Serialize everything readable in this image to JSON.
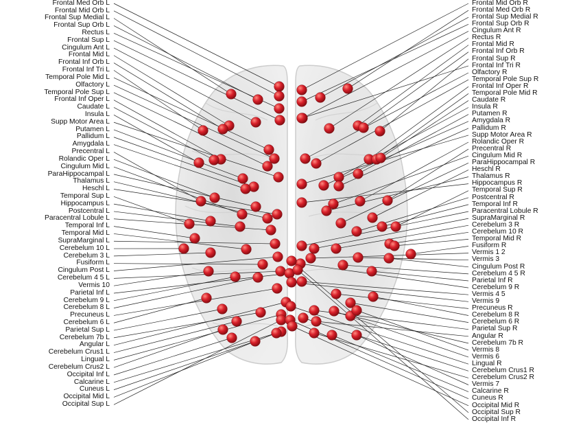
{
  "left_labels": [
    "Frontal Med Orb L",
    "Frontal Mid Orb L",
    "Frontal Sup Medial L",
    "Frontal Sup Orb L",
    "Rectus L",
    "Frontal Sup L",
    "Cingulum Ant L",
    "Frontal Mid L",
    "Frontal Inf Orb L",
    "Frontal Inf Tri L",
    "Temporal Pole Mid L",
    "Olfactory L",
    "Temporal Pole Sup L",
    "Frontal Inf Oper L",
    "Caudate L",
    "Insula L",
    "Supp Motor Area L",
    "Putamen L",
    "Pallidum L",
    "Amygdala L",
    "Precentral L",
    "Rolandic Oper L",
    "Cingulum Mid L",
    "ParaHippocampal L",
    "Thalamus L",
    "Heschl L",
    "Temporal Sup L",
    "Hippocampus L",
    "Postcentral L",
    "Paracentral Lobule L",
    "Temporal Inf L",
    "Temporal Mid L",
    "SupraMarginal L",
    "Cerebelum 10 L",
    "Cerebelum 3 L",
    "Fusiform L",
    "Cingulum Post L",
    "Cerebelum 4 5 L",
    "Vermis 10",
    "Parietal Inf L",
    "Cerebelum 9 L",
    "Cerebelum 8 L",
    "Precuneus L",
    "Cerebelum 6 L",
    "Parietal Sup L",
    "Cerebelum 7b L",
    "Angular L",
    "Cerebelum Crus1 L",
    "Lingual L",
    "Cerebelum Crus2 L",
    "Occipital Inf L",
    "Calcarine L",
    "Cuneus L",
    "Occipital Mid L",
    "Occipital Sup L"
  ],
  "right_labels": [
    "Frontal Mid Orb R",
    "Frontal Med Orb R",
    "Frontal Sup Medial R",
    "Frontal Sup Orb R",
    "Cingulum Ant R",
    "Rectus R",
    "Frontal Mid R",
    "Frontal Inf Orb R",
    "Frontal Sup R",
    "Frontal Inf Tri R",
    "Olfactory R",
    "Temporal Pole Sup R",
    "Frontal Inf Oper R",
    "Temporal Pole Mid R",
    "Caudate R",
    "Insula R",
    "Putamen R",
    "Amygdala R",
    "Pallidum R",
    "Supp Motor Area R",
    "Rolandic Oper R",
    "Precentral R",
    "Cingulum Mid R",
    "ParaHippocampal R",
    "Heschl R",
    "Thalamus R",
    "Hippocampus R",
    "Temporal Sup R",
    "Postcentral R",
    "Temporal Inf R",
    "Paracentral Lobule R",
    "SupraMarginal R",
    "Cerebelum 3 R",
    "Cerebelum 10 R",
    "Temporal Mid R",
    "Fusiform R",
    "Vermis 1 2",
    "Vermis 3",
    "Cingulum Post R",
    "Cerebelum 4 5 R",
    "Parietal Inf R",
    "Cerebelum 9 R",
    "Vermis 4 5",
    "Vermis 9",
    "Precuneus R",
    "Cerebelum 8 R",
    "Cerebelum 6 R",
    "Parietal Sup R",
    "Angular R",
    "Cerebelum 7b R",
    "Vermis 8",
    "Vermis 6",
    "Lingual R",
    "Cerebelum Crus1 R",
    "Cerebelum Crus2 R",
    "Vermis 7",
    "Calcarine R",
    "Cuneus R",
    "Occipital Mid R",
    "Occipital Sup R",
    "Occipital Inf R"
  ],
  "colors": {
    "node": "#c8151b",
    "node_highlight": "#ff8a80",
    "connector_line": "#222222",
    "brain_fill": "#e4e4e4",
    "brain_outline": "#c4c4c4"
  }
}
